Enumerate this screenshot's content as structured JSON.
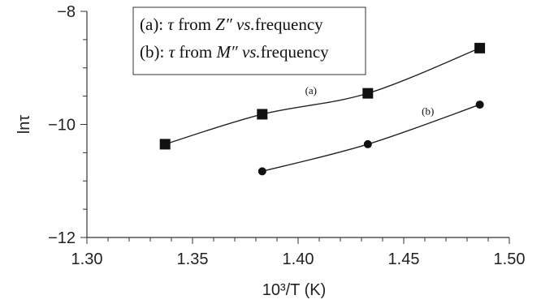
{
  "chart_data": {
    "type": "line",
    "x_label": "10³/T (K)",
    "y_label": "lnτ",
    "xlim": [
      1.3,
      1.5
    ],
    "ylim": [
      -12,
      -8
    ],
    "x_ticks": [
      "1.30",
      "1.35",
      "1.40",
      "1.45",
      "1.50"
    ],
    "y_ticks": [
      "−8",
      "−10",
      "−12"
    ],
    "grid": false,
    "legend": {
      "placement": "top-left",
      "entries": [
        {
          "prefix": "(a): ",
          "symbol": "τ",
          "middle": " from ",
          "var": "Z″",
          "vs": " vs.",
          "suffix": "frequency"
        },
        {
          "prefix": "(b): ",
          "symbol": "τ",
          "middle": " from ",
          "var": "M″",
          "vs": " vs.",
          "suffix": "frequency"
        }
      ]
    },
    "series": [
      {
        "label": "(a)",
        "marker": "square",
        "x": [
          1.337,
          1.383,
          1.433,
          1.486
        ],
        "y": [
          -10.35,
          -9.82,
          -9.45,
          -8.65
        ]
      },
      {
        "label": "(b)",
        "marker": "circle",
        "x": [
          1.383,
          1.433,
          1.486
        ],
        "y": [
          -10.83,
          -10.35,
          -9.65
        ]
      }
    ]
  }
}
